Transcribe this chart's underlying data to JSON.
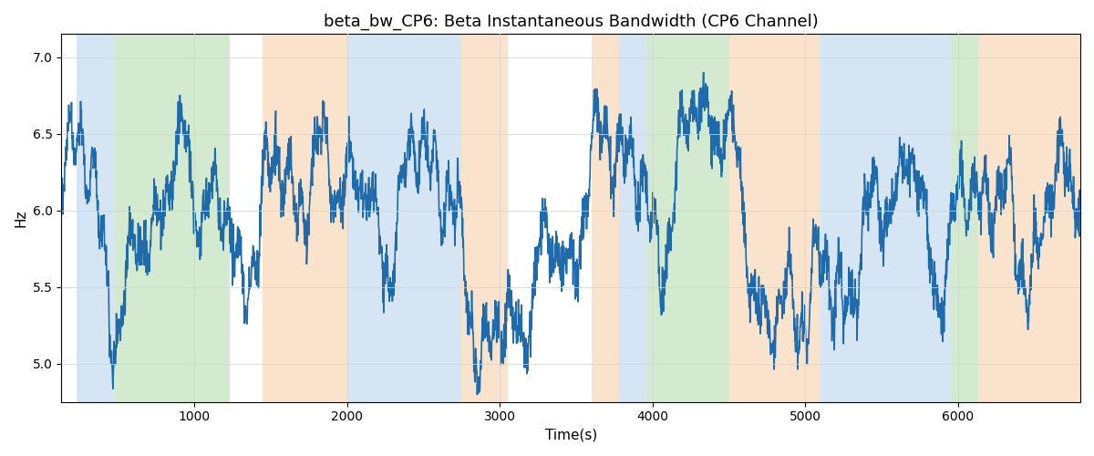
{
  "title": "beta_bw_CP6: Beta Instantaneous Bandwidth (CP6 Channel)",
  "xlabel": "Time(s)",
  "ylabel": "Hz",
  "ylim": [
    4.75,
    7.15
  ],
  "xlim": [
    130,
    6800
  ],
  "line_color": "#1f6aaa",
  "line_width": 1.2,
  "bg_bands": [
    {
      "xstart": 230,
      "xend": 480,
      "color": "#aecde8",
      "alpha": 0.5
    },
    {
      "xstart": 480,
      "xend": 1230,
      "color": "#a8d5a2",
      "alpha": 0.5
    },
    {
      "xstart": 1450,
      "xend": 2000,
      "color": "#f5c89a",
      "alpha": 0.5
    },
    {
      "xstart": 2000,
      "xend": 2750,
      "color": "#aecde8",
      "alpha": 0.5
    },
    {
      "xstart": 2750,
      "xend": 3050,
      "color": "#f5c89a",
      "alpha": 0.5
    },
    {
      "xstart": 3600,
      "xend": 3780,
      "color": "#f5c89a",
      "alpha": 0.5
    },
    {
      "xstart": 3780,
      "xend": 3960,
      "color": "#aecde8",
      "alpha": 0.5
    },
    {
      "xstart": 3960,
      "xend": 4500,
      "color": "#a8d5a2",
      "alpha": 0.5
    },
    {
      "xstart": 4500,
      "xend": 4700,
      "color": "#f5c89a",
      "alpha": 0.5
    },
    {
      "xstart": 4700,
      "xend": 5100,
      "color": "#f5c89a",
      "alpha": 0.5
    },
    {
      "xstart": 5100,
      "xend": 5950,
      "color": "#aecde8",
      "alpha": 0.5
    },
    {
      "xstart": 5950,
      "xend": 6130,
      "color": "#a8d5a2",
      "alpha": 0.5
    },
    {
      "xstart": 6130,
      "xend": 6800,
      "color": "#f5c89a",
      "alpha": 0.5
    }
  ],
  "seed": 42,
  "n_points": 3000,
  "t_start": 130,
  "t_end": 6800
}
